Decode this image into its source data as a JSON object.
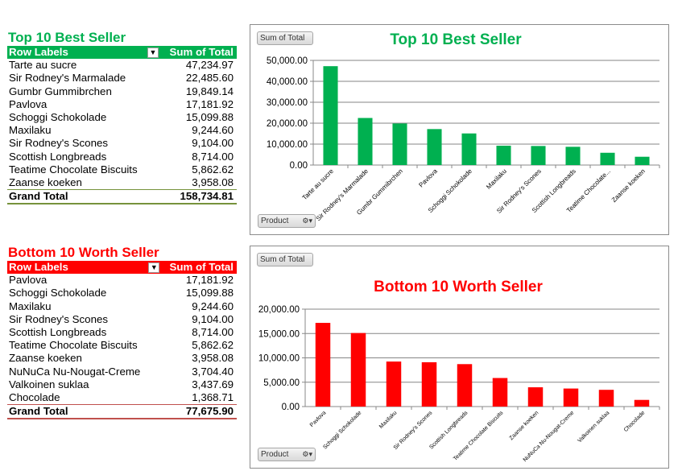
{
  "colors": {
    "top": "#00b050",
    "bottom": "#ff0000",
    "top_line": "#76923c",
    "bottom_line": "#c0504d"
  },
  "top": {
    "title": "Top 10 Best Seller",
    "header": {
      "rows": "Row Labels",
      "sum": "Sum of Total"
    },
    "rows": [
      {
        "label": "Tarte au sucre",
        "value": "47,234.97"
      },
      {
        "label": "Sir Rodney's Marmalade",
        "value": "22,485.60"
      },
      {
        "label": "Gumbr Gummibrchen",
        "value": "19,849.14"
      },
      {
        "label": "Pavlova",
        "value": "17,181.92"
      },
      {
        "label": "Schoggi Schokolade",
        "value": "15,099.88"
      },
      {
        "label": "Maxilaku",
        "value": "9,244.60"
      },
      {
        "label": "Sir Rodney's Scones",
        "value": "9,104.00"
      },
      {
        "label": "Scottish Longbreads",
        "value": "8,714.00"
      },
      {
        "label": "Teatime Chocolate Biscuits",
        "value": "5,862.62"
      },
      {
        "label": "Zaanse koeken",
        "value": "3,958.08"
      }
    ],
    "total": {
      "label": "Grand Total",
      "value": "158,734.81"
    },
    "chart_button": "Sum of Total",
    "axis_button": "Product"
  },
  "bottom": {
    "title": "Bottom 10 Worth Seller",
    "header": {
      "rows": "Row Labels",
      "sum": "Sum of Total"
    },
    "rows": [
      {
        "label": "Pavlova",
        "value": "17,181.92"
      },
      {
        "label": "Schoggi Schokolade",
        "value": "15,099.88"
      },
      {
        "label": "Maxilaku",
        "value": "9,244.60"
      },
      {
        "label": "Sir Rodney's Scones",
        "value": "9,104.00"
      },
      {
        "label": "Scottish Longbreads",
        "value": "8,714.00"
      },
      {
        "label": "Teatime Chocolate Biscuits",
        "value": "5,862.62"
      },
      {
        "label": "Zaanse koeken",
        "value": "3,958.08"
      },
      {
        "label": "NuNuCa Nu-Nougat-Creme",
        "value": "3,704.40"
      },
      {
        "label": "Valkoinen suklaa",
        "value": "3,437.69"
      },
      {
        "label": "Chocolade",
        "value": "1,368.71"
      }
    ],
    "total": {
      "label": "Grand Total",
      "value": "77,675.90"
    },
    "chart_button": "Sum of Total",
    "axis_button": "Product"
  },
  "chart_data": [
    {
      "type": "bar",
      "title": "Top 10 Best Seller",
      "color": "#00b050",
      "categories": [
        "Tarte au sucre",
        "Sir Rodney's Marmalade",
        "Gumbr Gummibrchen",
        "Pavlova",
        "Schoggi Schokolade",
        "Maxilaku",
        "Sir Rodney's Scones",
        "Scottish Longbreads",
        "Teatime Chocolate...",
        "Zaanse koeken"
      ],
      "values": [
        47234.97,
        22485.6,
        19849.14,
        17181.92,
        15099.88,
        9244.6,
        9104.0,
        8714.0,
        5862.62,
        3958.08
      ],
      "ylim": [
        0,
        50000
      ],
      "yticks": [
        "0.00",
        "10,000.00",
        "20,000.00",
        "30,000.00",
        "40,000.00",
        "50,000.00"
      ],
      "grid": true,
      "legend": "none"
    },
    {
      "type": "bar",
      "title": "Bottom 10 Worth Seller",
      "color": "#ff0000",
      "categories": [
        "Pavlova",
        "Schoggi Schokolade",
        "Maxilaku",
        "Sir Rodney's Scones",
        "Scottish Longbreads",
        "Teatime Chocolate Biscuits",
        "Zaanse koeken",
        "NuNuCa Nu-Nougat-Creme",
        "Valkoinen suklaa",
        "Chocolade"
      ],
      "values": [
        17181.92,
        15099.88,
        9244.6,
        9104.0,
        8714.0,
        5862.62,
        3958.08,
        3704.4,
        3437.69,
        1368.71
      ],
      "ylim": [
        0,
        20000
      ],
      "yticks": [
        "0.00",
        "5,000.00",
        "10,000.00",
        "15,000.00",
        "20,000.00"
      ],
      "grid": true,
      "legend": "none"
    }
  ]
}
